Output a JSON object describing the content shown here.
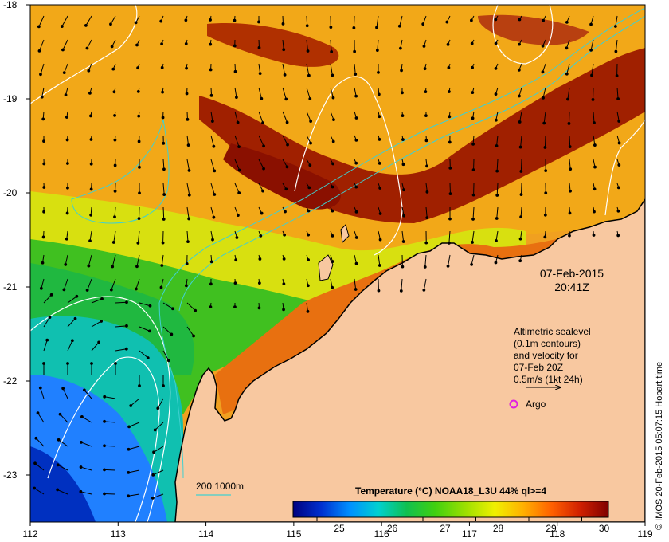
{
  "map": {
    "lon_range": [
      112,
      119
    ],
    "lat_range": [
      -23.5,
      -18
    ],
    "lon_ticks": [
      "112",
      "113",
      "114",
      "115",
      "116",
      "117",
      "118",
      "119"
    ],
    "lat_ticks": [
      "-18",
      "-19",
      "-20",
      "-21",
      "-22",
      "-23"
    ]
  },
  "datetime": {
    "date": "07-Feb-2015",
    "time": "20:41Z"
  },
  "info_box": {
    "lines": [
      "Altimetric sealevel",
      "(0.1m contours)",
      "and velocity for",
      "07-Feb 20Z",
      "0.5m/s (1kt 24h)"
    ]
  },
  "argo_legend": {
    "label": "Argo",
    "color": "#e020e0"
  },
  "depth_legend": {
    "label": "200  1000m",
    "color": "#40d0d0"
  },
  "colorbar": {
    "title": "Temperature (°C) NOAA18_L3U 44% ql>=4",
    "ticks": [
      "25",
      "26",
      "27",
      "28",
      "29",
      "30"
    ],
    "colors": [
      "#00007f",
      "#0030d0",
      "#0090ff",
      "#00d0d0",
      "#10c050",
      "#40d010",
      "#a0e000",
      "#f0f000",
      "#ffb000",
      "#ff6000",
      "#d02000",
      "#7f0000"
    ]
  },
  "credit": "© IMOS 20-Feb-2015 05:07:15 Hobart time",
  "colors": {
    "land": "#f8c8a0",
    "coast": "#000000",
    "sealevel_contour": "#ffffff",
    "isobath": "#40d0d0"
  }
}
